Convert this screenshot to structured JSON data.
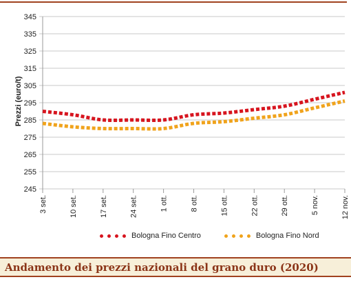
{
  "chart_data": {
    "type": "line",
    "title": "Andamento dei prezzi nazionali del grano duro (2020)",
    "xlabel": "",
    "ylabel": "Prezzi (euro/t)",
    "ylim": [
      245,
      345
    ],
    "yticks": [
      245,
      255,
      265,
      275,
      285,
      295,
      305,
      315,
      325,
      335,
      345
    ],
    "categories": [
      "3 set.",
      "10 set.",
      "17 set.",
      "24 set.",
      "1 ott.",
      "8 ott.",
      "15 ott.",
      "22 ott.",
      "29 ott.",
      "5 nov.",
      "12 nov."
    ],
    "grid": "horizontal",
    "legend_position": "bottom",
    "series": [
      {
        "name": "Bologna Fino Centro",
        "color": "#d7151f",
        "values": [
          290,
          288,
          285,
          285,
          285,
          288,
          289,
          291,
          293,
          297,
          301
        ]
      },
      {
        "name": "Bologna Fino Nord",
        "color": "#f0a31c",
        "values": [
          283,
          281,
          280,
          280,
          280,
          283,
          284,
          286,
          288,
          292,
          296
        ]
      }
    ]
  }
}
